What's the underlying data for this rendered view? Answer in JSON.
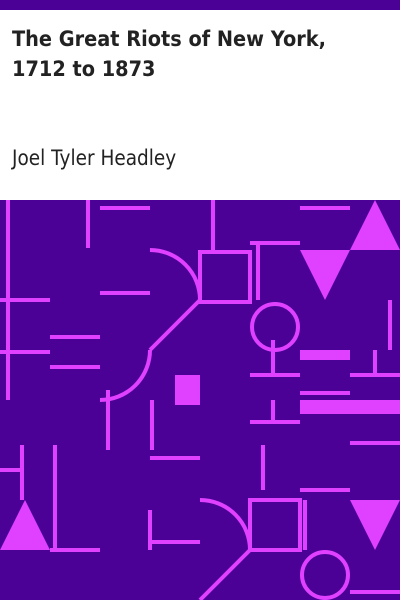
{
  "book": {
    "title": "The Great Riots of New York, 1712 to 1873",
    "author": "Joel Tyler Headley"
  },
  "colors": {
    "accent_bar": "#4b0096",
    "pattern_background": "#4b0096",
    "pattern_lines": "#e040ff",
    "text": "#222222"
  },
  "pattern": {
    "style": "geometric-lines-circles-triangles"
  }
}
